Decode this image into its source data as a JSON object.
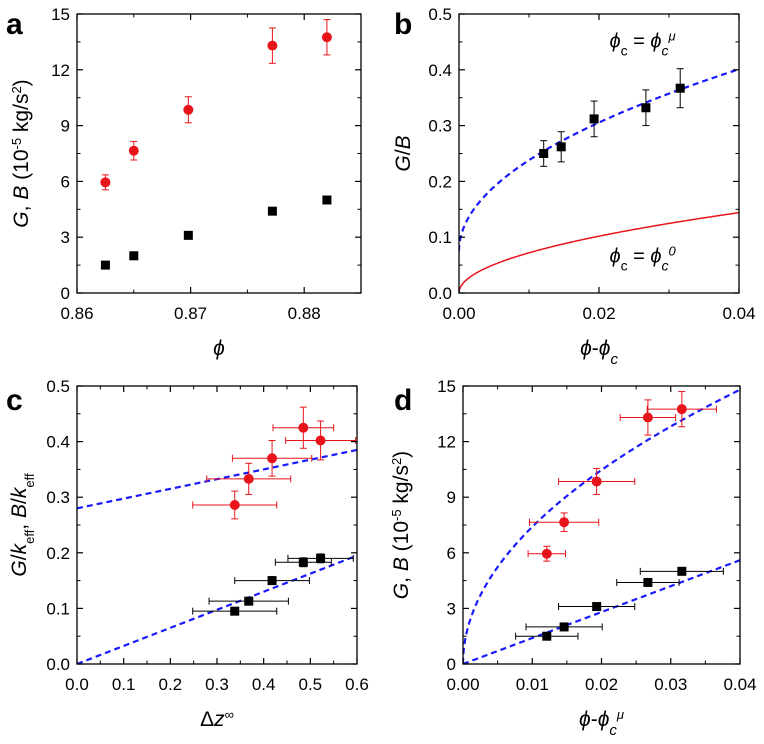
{
  "figure": {
    "panel_letters": [
      "a",
      "b",
      "c",
      "d"
    ]
  },
  "colors": {
    "red": "#e8141c",
    "black": "#000000",
    "blue": "#1a1aff",
    "axis": "#000000"
  },
  "chart_data": [
    {
      "panel": "a",
      "type": "scatter",
      "xlabel_html": "<tspan font-style='italic'>ϕ</tspan>",
      "ylabel_html": "<tspan font-style='italic'>G</tspan>, <tspan font-style='italic'>B</tspan> (10<tspan baseline-shift='super' font-size='13'>-5</tspan> kg/s<tspan baseline-shift='super' font-size='13'>2</tspan>)",
      "xlim": [
        0.86,
        0.885
      ],
      "ylim": [
        0,
        15
      ],
      "xticks": [
        0.86,
        0.87,
        0.88
      ],
      "xtick_labels": [
        "0.86",
        "0.87",
        "0.88"
      ],
      "yticks": [
        0,
        3,
        6,
        9,
        12,
        15
      ],
      "ytick_labels": [
        "0",
        "3",
        "6",
        "9",
        "12",
        "15"
      ],
      "xminor": [
        0.865,
        0.875
      ],
      "yminor": [
        1.5,
        4.5,
        7.5,
        10.5,
        13.5
      ],
      "series": [
        {
          "name": "G",
          "marker": "square",
          "color": "black",
          "points": [
            {
              "x": 0.8625,
              "y": 1.5
            },
            {
              "x": 0.865,
              "y": 2.0
            },
            {
              "x": 0.8698,
              "y": 3.1
            },
            {
              "x": 0.8772,
              "y": 4.4
            },
            {
              "x": 0.882,
              "y": 5.0
            }
          ]
        },
        {
          "name": "B",
          "marker": "circle",
          "color": "red",
          "points": [
            {
              "x": 0.8625,
              "y": 5.95,
              "yerr": 0.4
            },
            {
              "x": 0.865,
              "y": 7.65,
              "yerr": 0.5
            },
            {
              "x": 0.8698,
              "y": 9.85,
              "yerr": 0.7
            },
            {
              "x": 0.8772,
              "y": 13.3,
              "yerr": 0.95
            },
            {
              "x": 0.882,
              "y": 13.75,
              "yerr": 0.95
            }
          ]
        }
      ],
      "curves": []
    },
    {
      "panel": "b",
      "type": "scatter",
      "xlabel_html": "<tspan font-style='italic'>ϕ</tspan>-<tspan font-style='italic'>ϕ<tspan baseline-shift='sub' font-size='15'>c</tspan></tspan>",
      "ylabel_html": "<tspan font-style='italic'>G</tspan>/<tspan font-style='italic'>B</tspan>",
      "xlim": [
        0,
        0.04
      ],
      "ylim": [
        0,
        0.5
      ],
      "xticks": [
        0,
        0.02,
        0.04
      ],
      "xtick_labels": [
        "0.00",
        "0.02",
        "0.04"
      ],
      "yticks": [
        0,
        0.1,
        0.2,
        0.3,
        0.4,
        0.5
      ],
      "ytick_labels": [
        "0.0",
        "0.1",
        "0.2",
        "0.3",
        "0.4",
        "0.5"
      ],
      "xminor": [
        0.01,
        0.03
      ],
      "yminor": [
        0.05,
        0.15,
        0.25,
        0.35,
        0.45
      ],
      "series": [
        {
          "name": "G/B",
          "marker": "square",
          "color": "black",
          "points": [
            {
              "x": 0.0121,
              "y": 0.25,
              "yerr": 0.023
            },
            {
              "x": 0.0146,
              "y": 0.262,
              "yerr": 0.027
            },
            {
              "x": 0.0193,
              "y": 0.312,
              "yerr": 0.032
            },
            {
              "x": 0.0267,
              "y": 0.332,
              "yerr": 0.032
            },
            {
              "x": 0.0316,
              "y": 0.367,
              "yerr": 0.035
            }
          ]
        }
      ],
      "curves": [
        {
          "name": "phi_c = phi_c^mu fit",
          "kind": "sqrt",
          "a": 0.075,
          "b": 1.63,
          "x0": 0,
          "color": "blue",
          "dash": true,
          "width": 2.2
        },
        {
          "name": "phi_c = phi_c^0",
          "kind": "sqrt",
          "a": 0,
          "b": 0.72,
          "x0": 0,
          "color": "red",
          "dash": false,
          "width": 1.5
        }
      ],
      "annotations": [
        {
          "html": "<tspan font-style='italic' font-size='20'>ϕ</tspan><tspan baseline-shift='sub' font-size='14'>c</tspan><tspan font-size='20'> = </tspan><tspan font-style='italic' font-size='20'>ϕ</tspan><tspan baseline-shift='sub' font-size='14' font-style='italic'>c</tspan><tspan baseline-shift='super' font-size='13' font-style='italic'>μ</tspan>",
          "x": 0.0215,
          "y": 0.44
        },
        {
          "html": "<tspan font-style='italic' font-size='20'>ϕ</tspan><tspan baseline-shift='sub' font-size='14'>c</tspan><tspan font-size='20'> = </tspan><tspan font-style='italic' font-size='20'>ϕ</tspan><tspan baseline-shift='sub' font-size='14' font-style='italic'>c</tspan><tspan baseline-shift='super' font-size='13' font-style='italic'>0</tspan>",
          "x": 0.0215,
          "y": 0.055
        }
      ]
    },
    {
      "panel": "c",
      "type": "scatter",
      "xlabel_html": "Δ<tspan font-style='italic'>z</tspan><tspan baseline-shift='super' font-size='13'>∞</tspan>",
      "ylabel_html": "<tspan font-style='italic'>G</tspan>/<tspan font-style='italic'>k</tspan><tspan baseline-shift='sub' font-size='13'>eff</tspan><tspan>,</tspan> <tspan font-style='italic'>B</tspan>/<tspan font-style='italic'>k</tspan><tspan baseline-shift='sub' font-size='13'>eff</tspan>",
      "xlim": [
        0,
        0.6
      ],
      "ylim": [
        0,
        0.5
      ],
      "xticks": [
        0,
        0.1,
        0.2,
        0.3,
        0.4,
        0.5,
        0.6
      ],
      "xtick_labels": [
        "0.0",
        "0.1",
        "0.2",
        "0.3",
        "0.4",
        "0.5",
        "0.6"
      ],
      "yticks": [
        0,
        0.1,
        0.2,
        0.3,
        0.4,
        0.5
      ],
      "ytick_labels": [
        "0.0",
        "0.1",
        "0.2",
        "0.3",
        "0.4",
        "0.5"
      ],
      "xminor": [
        0.05,
        0.15,
        0.25,
        0.35,
        0.45,
        0.55
      ],
      "yminor": [
        0.05,
        0.15,
        0.25,
        0.35,
        0.45
      ],
      "series": [
        {
          "name": "B/k_eff",
          "marker": "circle",
          "color": "red",
          "points": [
            {
              "x": 0.338,
              "y": 0.286,
              "xerr": 0.09,
              "yerr": 0.025
            },
            {
              "x": 0.368,
              "y": 0.333,
              "xerr": 0.09,
              "yerr": 0.028
            },
            {
              "x": 0.418,
              "y": 0.37,
              "xerr": 0.085,
              "yerr": 0.032
            },
            {
              "x": 0.485,
              "y": 0.425,
              "xerr": 0.065,
              "yerr": 0.037
            },
            {
              "x": 0.522,
              "y": 0.402,
              "xerr": 0.075,
              "yerr": 0.035
            }
          ]
        },
        {
          "name": "G/k_eff",
          "marker": "square",
          "color": "black",
          "points": [
            {
              "x": 0.338,
              "y": 0.095,
              "xerr": 0.09,
              "yerr": 0.006
            },
            {
              "x": 0.368,
              "y": 0.113,
              "xerr": 0.085,
              "yerr": 0.006
            },
            {
              "x": 0.418,
              "y": 0.15,
              "xerr": 0.08,
              "yerr": 0.007
            },
            {
              "x": 0.485,
              "y": 0.183,
              "xerr": 0.06,
              "yerr": 0.008
            },
            {
              "x": 0.522,
              "y": 0.19,
              "xerr": 0.07,
              "yerr": 0.008
            }
          ]
        }
      ],
      "curves": [
        {
          "name": "B fit",
          "kind": "linear",
          "a": 0.28,
          "b": 0.175,
          "color": "blue",
          "dash": true,
          "width": 2.2
        },
        {
          "name": "G fit",
          "kind": "linear",
          "a": 0,
          "b": 0.325,
          "color": "blue",
          "dash": true,
          "width": 2.2
        }
      ]
    },
    {
      "panel": "d",
      "type": "scatter",
      "xlabel_html": "<tspan font-style='italic'>ϕ</tspan>-<tspan font-style='italic'>ϕ<tspan baseline-shift='sub' font-size='15'>c</tspan><tspan baseline-shift='super' font-size='13'>μ</tspan></tspan>",
      "ylabel_html": "<tspan font-style='italic'>G</tspan>, <tspan font-style='italic'>B</tspan> (10<tspan baseline-shift='super' font-size='13'>-5</tspan> kg/s<tspan baseline-shift='super' font-size='13'>2</tspan>)",
      "xlim": [
        0,
        0.04
      ],
      "ylim": [
        0,
        15
      ],
      "xticks": [
        0,
        0.01,
        0.02,
        0.03,
        0.04
      ],
      "xtick_labels": [
        "0.00",
        "0.01",
        "0.02",
        "0.03",
        "0.04"
      ],
      "yticks": [
        0,
        3,
        6,
        9,
        12,
        15
      ],
      "ytick_labels": [
        "0",
        "3",
        "6",
        "9",
        "12",
        "15"
      ],
      "xminor": [
        0.005,
        0.015,
        0.025,
        0.035
      ],
      "yminor": [
        1.5,
        4.5,
        7.5,
        10.5,
        13.5
      ],
      "series": [
        {
          "name": "B",
          "marker": "circle",
          "color": "red",
          "points": [
            {
              "x": 0.0121,
              "y": 5.95,
              "xerr": 0.0027,
              "yerr": 0.4
            },
            {
              "x": 0.0146,
              "y": 7.65,
              "xerr": 0.005,
              "yerr": 0.5
            },
            {
              "x": 0.0193,
              "y": 9.85,
              "xerr": 0.0055,
              "yerr": 0.7
            },
            {
              "x": 0.0267,
              "y": 13.3,
              "xerr": 0.004,
              "yerr": 0.95
            },
            {
              "x": 0.0316,
              "y": 13.75,
              "xerr": 0.005,
              "yerr": 0.95
            }
          ]
        },
        {
          "name": "G",
          "marker": "square",
          "color": "black",
          "points": [
            {
              "x": 0.0121,
              "y": 1.5,
              "xerr": 0.0045,
              "yerr": 0.1
            },
            {
              "x": 0.0146,
              "y": 2.0,
              "xerr": 0.0055,
              "yerr": 0.1
            },
            {
              "x": 0.0193,
              "y": 3.1,
              "xerr": 0.0055,
              "yerr": 0.12
            },
            {
              "x": 0.0267,
              "y": 4.4,
              "xerr": 0.0045,
              "yerr": 0.15
            },
            {
              "x": 0.0316,
              "y": 5.0,
              "xerr": 0.006,
              "yerr": 0.15
            }
          ]
        }
      ],
      "curves": [
        {
          "name": "B fit",
          "kind": "sqrt",
          "a": 0,
          "b": 74,
          "color": "blue",
          "dash": true,
          "width": 2.2
        },
        {
          "name": "G fit",
          "kind": "linear",
          "a": 0,
          "b": 140,
          "color": "blue",
          "dash": true,
          "width": 2.2
        }
      ]
    }
  ]
}
